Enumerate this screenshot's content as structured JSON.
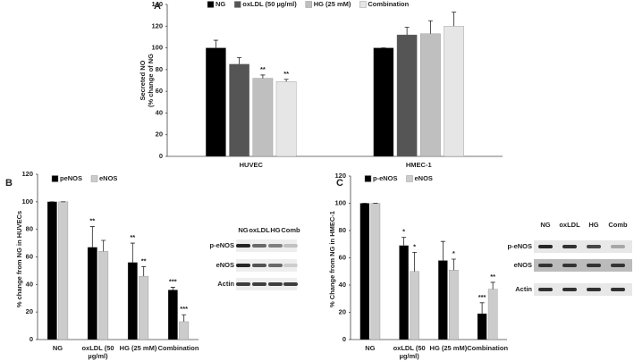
{
  "chart_data": [
    {
      "type": "bar",
      "panel": "A",
      "ylabel": [
        "Secreted NO",
        "(% change of NG"
      ],
      "categories": [
        "HUVEC",
        "HMEC-1"
      ],
      "series": [
        {
          "name": "NG",
          "color": "#000000",
          "values": [
            100,
            100
          ],
          "errors": [
            7,
            0
          ],
          "annotations": [
            null,
            null
          ]
        },
        {
          "name": "oxLDL (50 µg/ml)",
          "color": "#555555",
          "values": [
            85,
            112
          ],
          "errors": [
            6,
            7
          ],
          "annotations": [
            null,
            null
          ]
        },
        {
          "name": "HG (25 mM)",
          "color": "#bfbfbf",
          "values": [
            72,
            113
          ],
          "errors": [
            3,
            12
          ],
          "annotations": [
            "**",
            null
          ]
        },
        {
          "name": "Combination",
          "color": "#e6e6e6",
          "values": [
            69,
            120
          ],
          "errors": [
            2,
            13
          ],
          "annotations": [
            "**",
            null
          ]
        }
      ],
      "ylim": [
        0,
        140
      ],
      "yticks": [
        0,
        20,
        40,
        60,
        80,
        100,
        120,
        140
      ]
    },
    {
      "type": "bar",
      "panel": "B",
      "ylabel": "% change from NG in HUVECs",
      "categories": [
        "NG",
        "oxLDL (50 µg/ml)",
        "HG (25 mM)",
        "Combination"
      ],
      "series": [
        {
          "name": "peNOS",
          "color": "#000000",
          "values": [
            100,
            67,
            56,
            36
          ],
          "errors": [
            0,
            15,
            14,
            2
          ],
          "annotations": [
            null,
            "**",
            "**",
            "***"
          ]
        },
        {
          "name": "eNOS",
          "color": "#cccccc",
          "values": [
            100,
            64,
            46,
            13
          ],
          "errors": [
            0,
            8,
            7,
            5
          ],
          "annotations": [
            null,
            null,
            "**",
            "***"
          ]
        }
      ],
      "ylim": [
        0,
        120
      ],
      "yticks": [
        0,
        20,
        40,
        60,
        80,
        100,
        120
      ],
      "blot": {
        "columns": [
          "NG",
          "oxLDL",
          "HG",
          "Comb"
        ],
        "rows": [
          "p-eNOS",
          "eNOS",
          "Actin"
        ]
      }
    },
    {
      "type": "bar",
      "panel": "C",
      "ylabel": "% Change from NG in HMEC-1",
      "categories": [
        "NG",
        "oxLDL (50 µg/ml)",
        "HG (25 mM)",
        "Combination"
      ],
      "series": [
        {
          "name": "p-eNOS",
          "color": "#000000",
          "values": [
            100,
            69,
            58,
            19
          ],
          "errors": [
            0,
            6,
            14,
            8
          ],
          "annotations": [
            null,
            "*",
            null,
            "***"
          ]
        },
        {
          "name": "eNOS",
          "color": "#cccccc",
          "values": [
            100,
            50,
            51,
            37
          ],
          "errors": [
            0,
            14,
            8,
            5
          ],
          "annotations": [
            null,
            "*",
            "*",
            "**"
          ]
        }
      ],
      "ylim": [
        0,
        120
      ],
      "yticks": [
        0,
        20,
        40,
        60,
        80,
        100,
        120
      ],
      "blot": {
        "columns": [
          "NG",
          "oxLDL",
          "HG",
          "Comb"
        ],
        "rows": [
          "p-eNOS",
          "eNOS",
          "Actin"
        ]
      }
    }
  ]
}
